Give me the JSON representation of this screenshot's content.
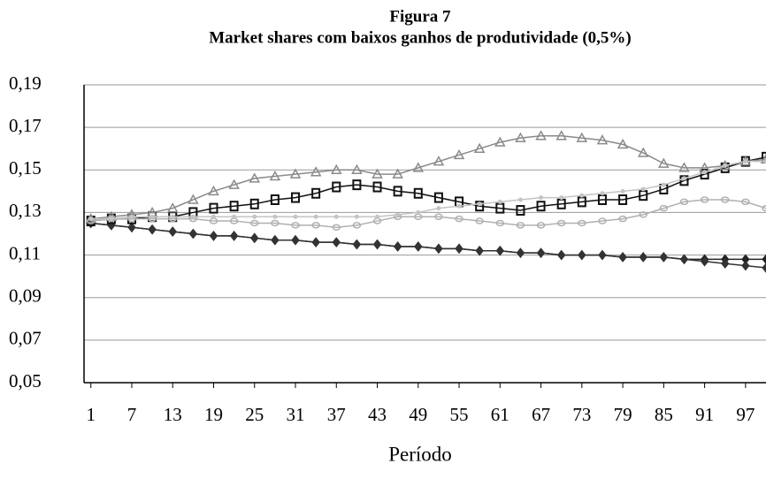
{
  "chart_data": {
    "type": "line",
    "title": "Figura 7",
    "subtitle": "Market shares com baixos ganhos de produtividade (0,5%)",
    "x_label": "Período",
    "x": [
      1,
      4,
      7,
      10,
      13,
      16,
      19,
      22,
      25,
      28,
      31,
      34,
      37,
      40,
      43,
      46,
      49,
      52,
      55,
      58,
      61,
      64,
      67,
      70,
      73,
      76,
      79,
      82,
      85,
      88,
      91,
      94,
      97,
      100
    ],
    "xlim": [
      0,
      100
    ],
    "xticks": [
      1,
      7,
      13,
      19,
      25,
      31,
      37,
      43,
      49,
      55,
      61,
      67,
      73,
      79,
      85,
      91,
      97
    ],
    "ylim": [
      0.05,
      0.19
    ],
    "yticks": [
      {
        "value": 0.05,
        "label": "0,05"
      },
      {
        "value": 0.07,
        "label": "0,07"
      },
      {
        "value": 0.09,
        "label": "0,09"
      },
      {
        "value": 0.11,
        "label": "0,11"
      },
      {
        "value": 0.13,
        "label": "0,13"
      },
      {
        "value": 0.15,
        "label": "0,15"
      },
      {
        "value": 0.17,
        "label": "0,17"
      },
      {
        "value": 0.19,
        "label": "0,19"
      }
    ],
    "grid": true,
    "series": [
      {
        "color": "#222222",
        "marker": "diamond",
        "values": [
          0.125,
          0.124,
          0.123,
          0.122,
          0.121,
          0.12,
          0.119,
          0.119,
          0.118,
          0.117,
          0.117,
          0.116,
          0.116,
          0.115,
          0.115,
          0.114,
          0.114,
          0.113,
          0.113,
          0.112,
          0.112,
          0.111,
          0.111,
          0.11,
          0.11,
          0.11,
          0.109,
          0.109,
          0.109,
          0.108,
          0.108,
          0.108,
          0.108,
          0.108
        ]
      },
      {
        "color": "#333333",
        "marker": "diamond",
        "values": [
          0.125,
          0.124,
          0.123,
          0.122,
          0.121,
          0.12,
          0.119,
          0.119,
          0.118,
          0.117,
          0.117,
          0.116,
          0.116,
          0.115,
          0.115,
          0.114,
          0.114,
          0.113,
          0.113,
          0.112,
          0.112,
          0.111,
          0.111,
          0.11,
          0.11,
          0.11,
          0.109,
          0.109,
          0.109,
          0.108,
          0.107,
          0.106,
          0.105,
          0.104
        ]
      },
      {
        "color": "#111111",
        "marker": "square",
        "values": [
          0.126,
          0.127,
          0.127,
          0.128,
          0.128,
          0.13,
          0.132,
          0.133,
          0.134,
          0.136,
          0.137,
          0.139,
          0.142,
          0.143,
          0.142,
          0.14,
          0.139,
          0.137,
          0.135,
          0.133,
          0.132,
          0.131,
          0.133,
          0.134,
          0.135,
          0.136,
          0.136,
          0.138,
          0.141,
          0.145,
          0.148,
          0.151,
          0.154,
          0.156
        ]
      },
      {
        "color": "#8a8a8a",
        "marker": "triangle",
        "values": [
          0.127,
          0.128,
          0.129,
          0.13,
          0.132,
          0.136,
          0.14,
          0.143,
          0.146,
          0.147,
          0.148,
          0.149,
          0.15,
          0.15,
          0.148,
          0.148,
          0.151,
          0.154,
          0.157,
          0.16,
          0.163,
          0.165,
          0.166,
          0.166,
          0.165,
          0.164,
          0.162,
          0.158,
          0.153,
          0.151,
          0.151,
          0.152,
          0.154,
          0.155
        ]
      },
      {
        "color": "#b0b0b0",
        "marker": "circle",
        "values": [
          0.126,
          0.127,
          0.127,
          0.127,
          0.127,
          0.127,
          0.126,
          0.126,
          0.125,
          0.125,
          0.124,
          0.124,
          0.123,
          0.124,
          0.126,
          0.128,
          0.128,
          0.128,
          0.127,
          0.126,
          0.125,
          0.124,
          0.124,
          0.125,
          0.125,
          0.126,
          0.127,
          0.129,
          0.132,
          0.135,
          0.136,
          0.136,
          0.135,
          0.132
        ]
      },
      {
        "color": "#c4c4c4",
        "marker": "dot",
        "values": [
          0.127,
          0.127,
          0.128,
          0.128,
          0.128,
          0.128,
          0.128,
          0.128,
          0.128,
          0.128,
          0.128,
          0.128,
          0.128,
          0.128,
          0.128,
          0.129,
          0.13,
          0.132,
          0.133,
          0.134,
          0.135,
          0.136,
          0.137,
          0.137,
          0.138,
          0.139,
          0.14,
          0.141,
          0.143,
          0.146,
          0.149,
          0.152,
          0.154,
          0.154
        ]
      }
    ]
  }
}
